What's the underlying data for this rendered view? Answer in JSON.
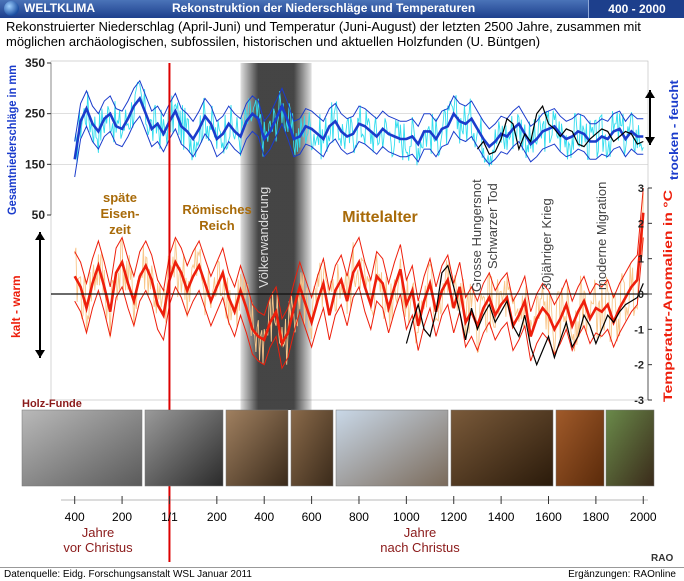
{
  "header": {
    "brand": "WELTKLIMA",
    "title": "Rekonstruktion der Niederschläge und Temperaturen",
    "range": "400 - 2000"
  },
  "subtitle": "Rekonstruierter Niederschlag (April-Juni) und Temperatur (Juni-August) der letzten 2500 Jahre, zusammen mit möglichen archäologischen, subfossilen, historischen und aktuellen Holzfunden (U. Büntgen)",
  "chart_data": {
    "type": "line",
    "x_axis": {
      "ticks": [
        -400,
        -200,
        0,
        200,
        400,
        600,
        800,
        1000,
        1200,
        1400,
        1600,
        1800,
        2000
      ],
      "tick_labels": [
        "400",
        "200",
        "1/1",
        "200",
        "400",
        "600",
        "800",
        "1000",
        "1200",
        "1400",
        "1600",
        "1800",
        "2000"
      ],
      "label_bc": "Jahre\nvor Christus",
      "label_ad": "Jahre\nnach Christus",
      "xlim": [
        -500,
        2020
      ]
    },
    "precip_axis": {
      "label": "Gesamtniederschläge in mm",
      "ticks": [
        50,
        150,
        250,
        350
      ],
      "ylim": [
        50,
        350
      ]
    },
    "temp_axis": {
      "label": "Temperatur-Anomalien in °C",
      "ticks": [
        -3,
        -2,
        -1,
        0,
        1,
        2,
        3
      ],
      "ylim": [
        -3,
        3
      ]
    },
    "side_labels": {
      "wet": "trocken - feucht",
      "warm": "kalt - warm"
    },
    "precipitation": {
      "x": [
        -400,
        -375,
        -350,
        -325,
        -300,
        -275,
        -250,
        -225,
        -200,
        -175,
        -150,
        -125,
        -100,
        -75,
        -50,
        -25,
        0,
        25,
        50,
        75,
        100,
        125,
        150,
        175,
        200,
        225,
        250,
        275,
        300,
        325,
        350,
        375,
        400,
        425,
        450,
        475,
        500,
        525,
        550,
        575,
        600,
        625,
        650,
        675,
        700,
        725,
        750,
        775,
        800,
        825,
        850,
        875,
        900,
        925,
        950,
        975,
        1000,
        1025,
        1050,
        1075,
        1100,
        1125,
        1150,
        1175,
        1200,
        1225,
        1250,
        1275,
        1300,
        1325,
        1350,
        1375,
        1400,
        1425,
        1450,
        1475,
        1500,
        1525,
        1550,
        1575,
        1600,
        1625,
        1650,
        1675,
        1700,
        1725,
        1750,
        1775,
        1800,
        1825,
        1850,
        1875,
        1900,
        1925,
        1950,
        1975,
        2000
      ],
      "smooth": [
        160,
        235,
        260,
        230,
        215,
        240,
        250,
        225,
        220,
        240,
        265,
        280,
        250,
        220,
        230,
        210,
        235,
        255,
        225,
        215,
        200,
        220,
        245,
        230,
        200,
        210,
        230,
        215,
        205,
        235,
        250,
        240,
        200,
        215,
        240,
        265,
        235,
        200,
        205,
        225,
        220,
        210,
        200,
        225,
        235,
        215,
        205,
        210,
        230,
        225,
        215,
        205,
        220,
        210,
        205,
        200,
        200,
        205,
        190,
        215,
        215,
        200,
        220,
        225,
        250,
        235,
        230,
        240,
        220,
        200,
        185,
        195,
        210,
        205,
        220,
        230,
        210,
        190,
        200,
        215,
        220,
        225,
        210,
        200,
        205,
        215,
        210,
        195,
        195,
        205,
        200,
        215,
        220,
        200,
        215,
        205,
        205
      ],
      "band_width": 35,
      "measured": {
        "x": [
          1300,
          1325,
          1350,
          1375,
          1400,
          1425,
          1450,
          1475,
          1500,
          1525,
          1550,
          1575,
          1600,
          1625,
          1650,
          1675,
          1700,
          1725,
          1750,
          1775,
          1800,
          1825,
          1850,
          1875,
          1900,
          1925,
          1950,
          1975,
          2000
        ],
        "values": [
          180,
          195,
          170,
          175,
          200,
          240,
          230,
          180,
          210,
          195,
          250,
          265,
          230,
          220,
          205,
          220,
          215,
          190,
          185,
          200,
          210,
          220,
          215,
          195,
          205,
          215,
          210,
          190,
          195
        ]
      }
    },
    "temperature": {
      "x": [
        -400,
        -375,
        -350,
        -325,
        -300,
        -275,
        -250,
        -225,
        -200,
        -175,
        -150,
        -125,
        -100,
        -75,
        -50,
        -25,
        0,
        25,
        50,
        75,
        100,
        125,
        150,
        175,
        200,
        225,
        250,
        275,
        300,
        325,
        350,
        375,
        400,
        425,
        450,
        475,
        500,
        525,
        550,
        575,
        600,
        625,
        650,
        675,
        700,
        725,
        750,
        775,
        800,
        825,
        850,
        875,
        900,
        925,
        950,
        975,
        1000,
        1025,
        1050,
        1075,
        1100,
        1125,
        1150,
        1175,
        1200,
        1225,
        1250,
        1275,
        1300,
        1325,
        1350,
        1375,
        1400,
        1425,
        1450,
        1475,
        1500,
        1525,
        1550,
        1575,
        1600,
        1625,
        1650,
        1675,
        1700,
        1725,
        1750,
        1775,
        1800,
        1825,
        1850,
        1875,
        1900,
        1925,
        1950,
        1975,
        2000
      ],
      "smooth": [
        0.5,
        0.2,
        -0.4,
        0.3,
        0.8,
        0.2,
        -0.5,
        0.6,
        0.9,
        0.3,
        -0.2,
        0.5,
        0.8,
        0.4,
        -0.3,
        -0.6,
        0.4,
        0.9,
        0.6,
        0.1,
        0.5,
        0.8,
        0.3,
        -0.2,
        0.2,
        0.6,
        -0.1,
        -0.5,
        0.1,
        -0.4,
        -1.0,
        -1.2,
        -1.3,
        -0.8,
        -0.5,
        -1.4,
        -1.1,
        -0.4,
        0.2,
        -0.3,
        -0.8,
        -0.2,
        0.3,
        -0.6,
        0.1,
        0.4,
        -0.2,
        0.6,
        0.9,
        0.2,
        -0.3,
        0.5,
        0.3,
        -0.4,
        0.2,
        0.7,
        -0.3,
        0.1,
        -0.9,
        -0.2,
        0.3,
        -0.5,
        0.1,
        0.4,
        -0.4,
        0.2,
        -0.8,
        -0.5,
        -0.9,
        -0.4,
        -0.1,
        -0.6,
        -0.3,
        -0.1,
        -0.9,
        -0.6,
        -0.2,
        -1.2,
        -0.7,
        -0.4,
        -0.6,
        -1.0,
        -0.7,
        -0.3,
        -0.9,
        -0.5,
        -0.2,
        -0.7,
        -0.4,
        -0.5,
        -0.3,
        -0.8,
        -0.4,
        -0.1,
        0.2,
        0.4,
        2.3
      ],
      "band_width": 0.7,
      "measured": {
        "x": [
          1000,
          1025,
          1050,
          1075,
          1100,
          1125,
          1150,
          1175,
          1200,
          1225,
          1250,
          1275,
          1300,
          1325,
          1350,
          1375,
          1400,
          1425,
          1450,
          1475,
          1500,
          1525,
          1550,
          1575,
          1600,
          1625,
          1650,
          1675,
          1700,
          1725,
          1750,
          1775,
          1800,
          1825,
          1850,
          1875,
          1900,
          1925,
          1950,
          1975,
          2000
        ],
        "values": [
          -1.4,
          -0.8,
          -0.3,
          -1.0,
          -1.2,
          -0.5,
          0.6,
          0.8,
          0.2,
          -0.5,
          -1.3,
          -0.4,
          -1.0,
          -0.6,
          -0.3,
          -0.8,
          -0.5,
          -0.2,
          -0.9,
          -1.2,
          -0.6,
          -1.5,
          -2.0,
          -1.6,
          -1.2,
          -1.8,
          -1.3,
          -0.8,
          -1.5,
          -1.2,
          -0.6,
          -0.9,
          -1.4,
          -1.0,
          -0.6,
          -0.8,
          -0.5,
          -0.3,
          -0.2,
          -0.1,
          0.3
        ]
      }
    },
    "annotations": {
      "late_iron_age": "späte\nEisen-\nzeit",
      "roman_empire": "Römisches\nReich",
      "migration_period": "Völkerwanderung",
      "middle_ages": "Mittelalter",
      "famine": "Grosse Hungersnot",
      "black_death": "Schwarzer Tod",
      "thirty_years_war": "30jähriger Krieg",
      "modern_migration": "moderne Migration"
    },
    "colors": {
      "precip_main": "#1b3ccc",
      "precip_raw": "#33ddee",
      "temp_main": "#ee1f0c",
      "temp_raw": "#f9c68a",
      "measured": "#000000",
      "era_text": "#a86a08",
      "event_text": "#444444",
      "migration_bar": "#303030",
      "red_marker": "#dd0000"
    }
  },
  "wood_finds": {
    "label": "Holz-Funde"
  },
  "footer": {
    "source": "Datenquelle: Eidg. Forschungsanstalt WSL  Januar 2011",
    "credit": "Ergänzungen: RAOnline",
    "logo": "RAO"
  }
}
